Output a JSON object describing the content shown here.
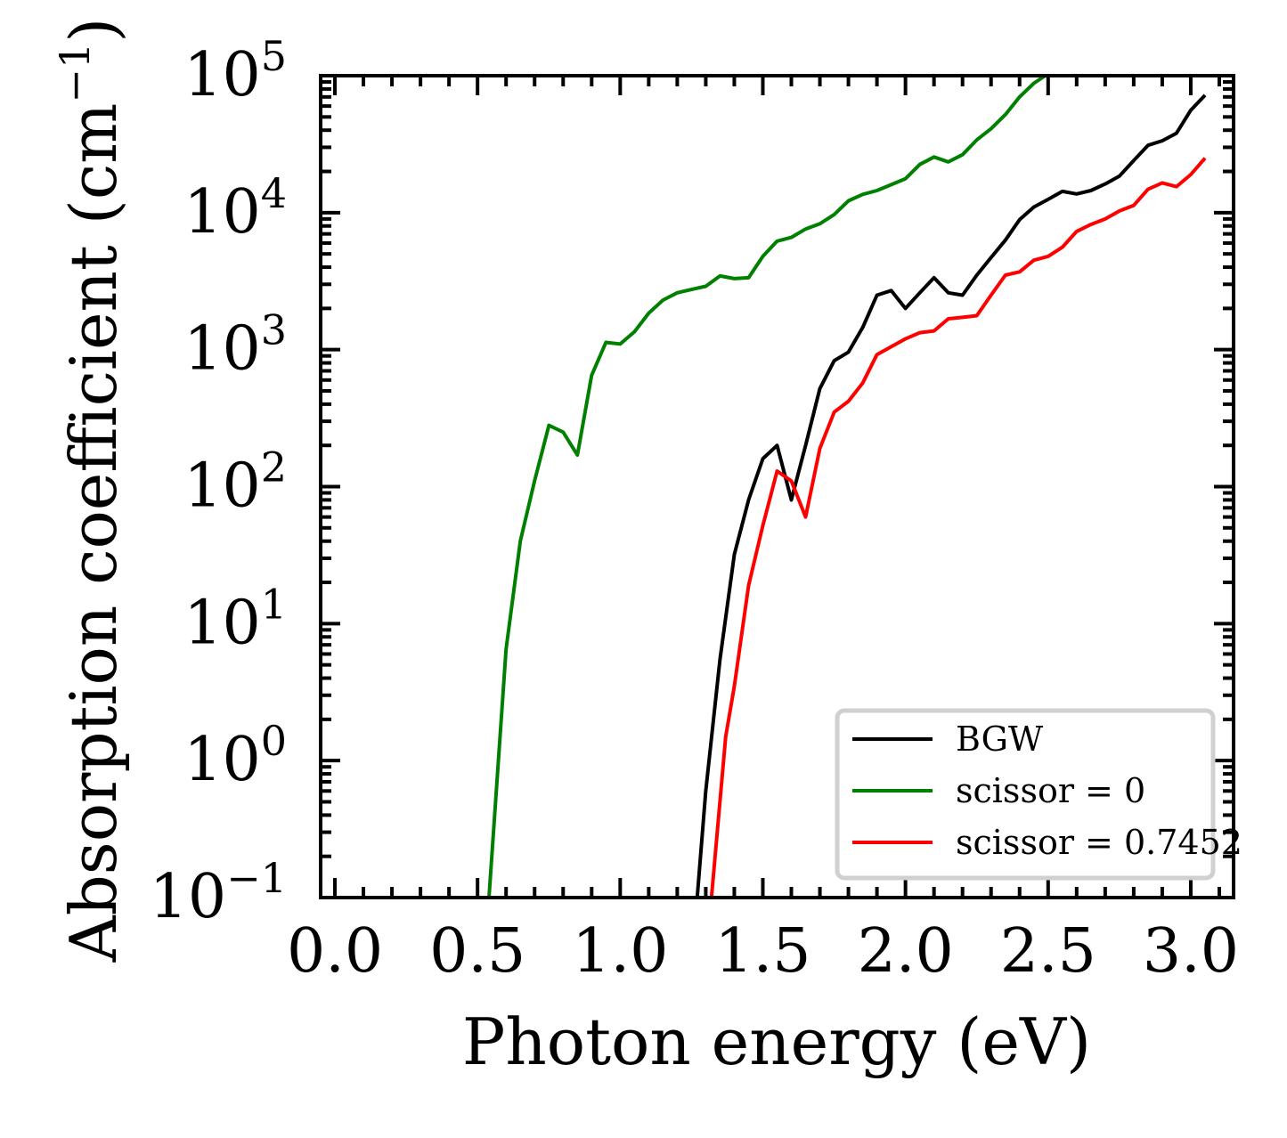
{
  "chart_data": {
    "type": "line",
    "title": "",
    "xlabel": "Photon energy (eV)",
    "ylabel_text": "Absorption coefficient (cm",
    "ylabel_exponent": "−1",
    "ylabel_close": ")",
    "yscale": "log",
    "xlim": [
      -0.05,
      3.15
    ],
    "ylim": [
      0.1,
      100000
    ],
    "grid": false,
    "legend_position": "lower-right",
    "x_ticks": [
      {
        "value": 0.0,
        "label": "0.0"
      },
      {
        "value": 0.5,
        "label": "0.5"
      },
      {
        "value": 1.0,
        "label": "1.0"
      },
      {
        "value": 1.5,
        "label": "1.5"
      },
      {
        "value": 2.0,
        "label": "2.0"
      },
      {
        "value": 2.5,
        "label": "2.5"
      },
      {
        "value": 3.0,
        "label": "3.0"
      }
    ],
    "y_ticks": [
      {
        "value": 0.1,
        "base": "10",
        "exp": "−1"
      },
      {
        "value": 1,
        "base": "10",
        "exp": "0"
      },
      {
        "value": 10,
        "base": "10",
        "exp": "1"
      },
      {
        "value": 100,
        "base": "10",
        "exp": "2"
      },
      {
        "value": 1000,
        "base": "10",
        "exp": "3"
      },
      {
        "value": 10000,
        "base": "10",
        "exp": "4"
      },
      {
        "value": 100000,
        "base": "10",
        "exp": "5"
      }
    ],
    "series": [
      {
        "name": "BGW",
        "color": "#000000",
        "points": [
          [
            1.27,
            0.1
          ],
          [
            1.3,
            0.6
          ],
          [
            1.35,
            5.5
          ],
          [
            1.4,
            32
          ],
          [
            1.45,
            80
          ],
          [
            1.5,
            160
          ],
          [
            1.55,
            200
          ],
          [
            1.6,
            80
          ],
          [
            1.65,
            200
          ],
          [
            1.7,
            520
          ],
          [
            1.75,
            830
          ],
          [
            1.8,
            960
          ],
          [
            1.85,
            1450
          ],
          [
            1.9,
            2500
          ],
          [
            1.95,
            2700
          ],
          [
            2.0,
            2000
          ],
          [
            2.05,
            2600
          ],
          [
            2.1,
            3350
          ],
          [
            2.15,
            2600
          ],
          [
            2.2,
            2500
          ],
          [
            2.25,
            3500
          ],
          [
            2.3,
            4700
          ],
          [
            2.35,
            6300
          ],
          [
            2.4,
            8900
          ],
          [
            2.45,
            11000
          ],
          [
            2.5,
            12500
          ],
          [
            2.55,
            14300
          ],
          [
            2.6,
            13700
          ],
          [
            2.65,
            14500
          ],
          [
            2.7,
            16200
          ],
          [
            2.75,
            18500
          ],
          [
            2.8,
            24000
          ],
          [
            2.85,
            31000
          ],
          [
            2.9,
            33500
          ],
          [
            2.95,
            38000
          ],
          [
            3.0,
            56000
          ],
          [
            3.05,
            72000
          ]
        ]
      },
      {
        "name": "scissor = 0",
        "color": "#008000",
        "points": [
          [
            0.54,
            0.1
          ],
          [
            0.6,
            6.5
          ],
          [
            0.65,
            40
          ],
          [
            0.7,
            110
          ],
          [
            0.75,
            280
          ],
          [
            0.8,
            250
          ],
          [
            0.85,
            170
          ],
          [
            0.9,
            650
          ],
          [
            0.95,
            1130
          ],
          [
            1.0,
            1100
          ],
          [
            1.05,
            1350
          ],
          [
            1.1,
            1850
          ],
          [
            1.15,
            2300
          ],
          [
            1.2,
            2600
          ],
          [
            1.25,
            2750
          ],
          [
            1.3,
            2900
          ],
          [
            1.35,
            3450
          ],
          [
            1.4,
            3300
          ],
          [
            1.45,
            3350
          ],
          [
            1.5,
            4800
          ],
          [
            1.55,
            6200
          ],
          [
            1.6,
            6600
          ],
          [
            1.65,
            7600
          ],
          [
            1.7,
            8300
          ],
          [
            1.75,
            9700
          ],
          [
            1.8,
            12200
          ],
          [
            1.85,
            13600
          ],
          [
            1.9,
            14500
          ],
          [
            1.95,
            16000
          ],
          [
            2.0,
            17700
          ],
          [
            2.05,
            22500
          ],
          [
            2.1,
            25500
          ],
          [
            2.15,
            23500
          ],
          [
            2.2,
            26500
          ],
          [
            2.25,
            34000
          ],
          [
            2.3,
            41000
          ],
          [
            2.35,
            52000
          ],
          [
            2.4,
            70000
          ],
          [
            2.45,
            88000
          ],
          [
            2.49,
            100000
          ]
        ]
      },
      {
        "name": "scissor = 0.7452",
        "color": "#ff0000",
        "points": [
          [
            1.32,
            0.1
          ],
          [
            1.37,
            1.5
          ],
          [
            1.4,
            3.5
          ],
          [
            1.45,
            19
          ],
          [
            1.5,
            52
          ],
          [
            1.55,
            130
          ],
          [
            1.6,
            110
          ],
          [
            1.65,
            60
          ],
          [
            1.7,
            190
          ],
          [
            1.75,
            350
          ],
          [
            1.8,
            420
          ],
          [
            1.85,
            570
          ],
          [
            1.9,
            920
          ],
          [
            1.95,
            1050
          ],
          [
            2.0,
            1200
          ],
          [
            2.05,
            1330
          ],
          [
            2.1,
            1370
          ],
          [
            2.15,
            1680
          ],
          [
            2.2,
            1720
          ],
          [
            2.25,
            1770
          ],
          [
            2.3,
            2500
          ],
          [
            2.35,
            3500
          ],
          [
            2.4,
            3700
          ],
          [
            2.45,
            4500
          ],
          [
            2.5,
            4800
          ],
          [
            2.55,
            5600
          ],
          [
            2.6,
            7300
          ],
          [
            2.65,
            8200
          ],
          [
            2.7,
            9000
          ],
          [
            2.75,
            10300
          ],
          [
            2.8,
            11300
          ],
          [
            2.85,
            14800
          ],
          [
            2.9,
            16500
          ],
          [
            2.95,
            15500
          ],
          [
            3.0,
            19000
          ],
          [
            3.05,
            25000
          ]
        ]
      }
    ]
  }
}
